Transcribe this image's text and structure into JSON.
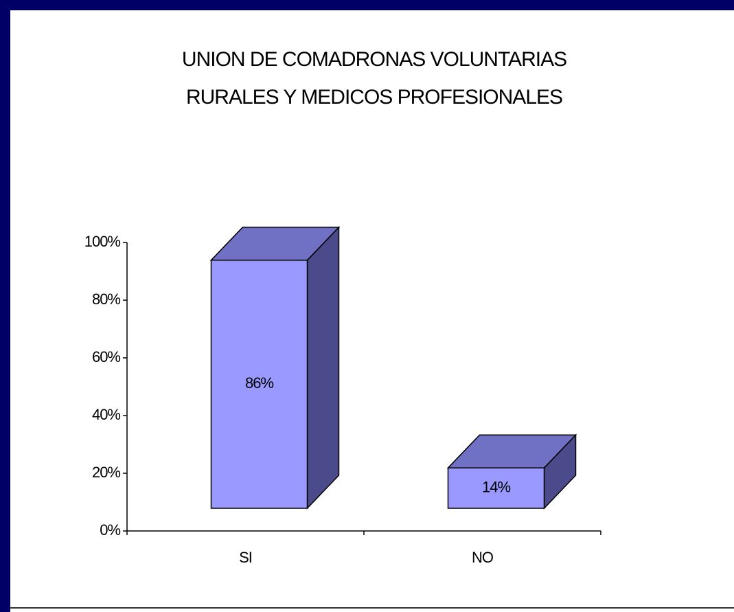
{
  "chart_data": {
    "type": "bar3d",
    "title": [
      "UNION DE COMADRONAS VOLUNTARIAS",
      "RURALES Y MEDICOS PROFESIONALES"
    ],
    "categories": [
      "SI",
      "NO"
    ],
    "values": [
      86,
      14
    ],
    "value_labels": [
      "86%",
      "14%"
    ],
    "color": "#9999ff",
    "ylim": [
      0,
      100
    ],
    "yticks": [
      {
        "value": 0,
        "label": "0%"
      },
      {
        "value": 20,
        "label": "20%"
      },
      {
        "value": 40,
        "label": "40%"
      },
      {
        "value": 60,
        "label": "60%"
      },
      {
        "value": 80,
        "label": "80%"
      },
      {
        "value": 100,
        "label": "100%"
      }
    ]
  }
}
